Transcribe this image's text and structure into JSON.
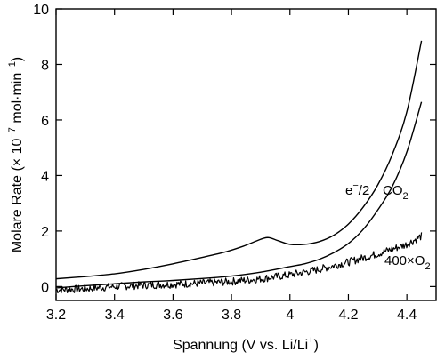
{
  "chart_data": {
    "type": "line",
    "xlabel": {
      "main": "Spannung (V vs. Li/Li",
      "sup": "+",
      "tail": ")"
    },
    "ylabel": {
      "main": "Molare Rate (× 10",
      "sup1": "−7",
      "mid": " mol·min",
      "sup2": "−1",
      "tail": ")"
    },
    "xlim": [
      3.2,
      4.5
    ],
    "ylim": [
      -0.5,
      10
    ],
    "xticks": [
      3.2,
      3.4,
      3.6,
      3.8,
      4.0,
      4.2,
      4.4
    ],
    "xtick_labels": [
      "3.2",
      "3.4",
      "3.6",
      "3.8",
      "4",
      "4.2",
      "4.4"
    ],
    "yticks": [
      0,
      2,
      4,
      6,
      8,
      10
    ],
    "ytick_labels": [
      "0",
      "2",
      "4",
      "6",
      "8",
      "10"
    ],
    "grid": false,
    "legend": "none",
    "series": [
      {
        "name": "e⁻/2",
        "label_main": "e",
        "label_sup": "−",
        "label_tail": "/2",
        "points": [
          [
            3.2,
            0.28
          ],
          [
            3.3,
            0.36
          ],
          [
            3.4,
            0.46
          ],
          [
            3.5,
            0.62
          ],
          [
            3.6,
            0.82
          ],
          [
            3.7,
            1.05
          ],
          [
            3.78,
            1.25
          ],
          [
            3.84,
            1.45
          ],
          [
            3.88,
            1.62
          ],
          [
            3.91,
            1.74
          ],
          [
            3.93,
            1.76
          ],
          [
            3.96,
            1.65
          ],
          [
            4.0,
            1.52
          ],
          [
            4.05,
            1.52
          ],
          [
            4.1,
            1.62
          ],
          [
            4.15,
            1.85
          ],
          [
            4.2,
            2.25
          ],
          [
            4.25,
            2.85
          ],
          [
            4.3,
            3.65
          ],
          [
            4.35,
            4.75
          ],
          [
            4.4,
            6.3
          ],
          [
            4.45,
            8.85
          ]
        ]
      },
      {
        "name": "CO₂",
        "label_main": "CO",
        "label_sub": "2",
        "points": [
          [
            3.2,
            -0.05
          ],
          [
            3.3,
            0.03
          ],
          [
            3.4,
            0.1
          ],
          [
            3.5,
            0.17
          ],
          [
            3.6,
            0.22
          ],
          [
            3.7,
            0.29
          ],
          [
            3.8,
            0.38
          ],
          [
            3.9,
            0.52
          ],
          [
            4.0,
            0.72
          ],
          [
            4.05,
            0.82
          ],
          [
            4.1,
            0.98
          ],
          [
            4.15,
            1.22
          ],
          [
            4.2,
            1.55
          ],
          [
            4.25,
            2.05
          ],
          [
            4.3,
            2.75
          ],
          [
            4.35,
            3.6
          ],
          [
            4.4,
            4.85
          ],
          [
            4.45,
            6.65
          ]
        ]
      },
      {
        "name": "400×O₂",
        "label_main": "400×O",
        "label_sub": "2",
        "points": [
          [
            3.2,
            -0.12
          ],
          [
            3.3,
            -0.08
          ],
          [
            3.4,
            0.0
          ],
          [
            3.5,
            0.05
          ],
          [
            3.6,
            0.08
          ],
          [
            3.7,
            0.12
          ],
          [
            3.8,
            0.18
          ],
          [
            3.9,
            0.28
          ],
          [
            4.0,
            0.42
          ],
          [
            4.1,
            0.62
          ],
          [
            4.2,
            0.88
          ],
          [
            4.3,
            1.18
          ],
          [
            4.4,
            1.52
          ],
          [
            4.45,
            1.82
          ]
        ],
        "noise_amplitude": 0.14
      }
    ]
  }
}
